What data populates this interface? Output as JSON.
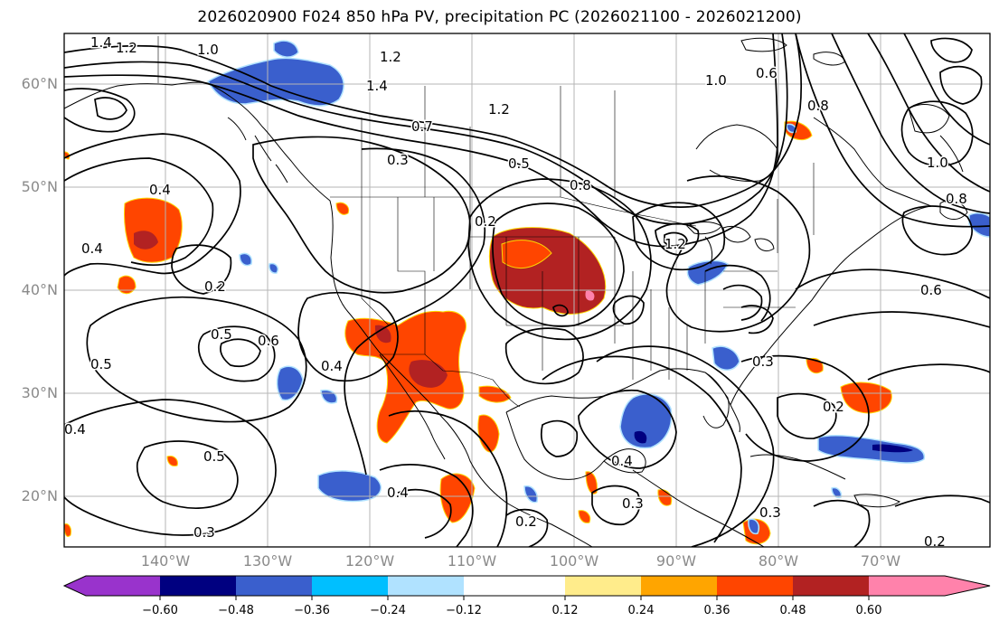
{
  "title": "2026020900 F024 850 hPa PV, precipitation PC (2026021100 - 2026021200)",
  "lat_labels": [
    "60°N",
    "50°N",
    "40°N",
    "30°N",
    "20°N"
  ],
  "lon_labels": [
    "140°W",
    "130°W",
    "120°W",
    "110°W",
    "100°W",
    "90°W",
    "80°W",
    "70°W"
  ],
  "contour_labels": [
    "1.4",
    "1.2",
    "1.0",
    "1.2",
    "1.4",
    "0.7",
    "1.2",
    "0.5",
    "0.8",
    "1.2",
    "1.0",
    "0.6",
    "0.8",
    "0.3",
    "0.4",
    "0.2",
    "0.4",
    "0.2",
    "0.5",
    "0.6",
    "0.4",
    "0.5",
    "0.4",
    "0.5",
    "0.4",
    "0.6",
    "0.3",
    "0.2",
    "0.4",
    "0.3",
    "0.3",
    "0.2",
    "0.3",
    "0.2",
    "1.0",
    "0.8"
  ],
  "colorbar": {
    "colors": [
      "#9933cc",
      "#000080",
      "#3a5fcd",
      "#00bfff",
      "#b0e2ff",
      "#ffffff",
      "#ffec8b",
      "#ffa500",
      "#ff4500",
      "#b22222",
      "#ff82ab"
    ],
    "tick_labels": [
      "−0.60",
      "−0.48",
      "−0.36",
      "−0.24",
      "−0.12",
      "0.12",
      "0.24",
      "0.36",
      "0.48",
      "0.60"
    ]
  },
  "chart_data": {
    "type": "map",
    "title": "2026020900 F024 850 hPa PV, precipitation PC (2026021100 - 2026021200)",
    "variables": [
      "850 hPa PV (contours)",
      "precipitation PC (shading)"
    ],
    "region": "North America",
    "lon_range": [
      -150,
      -59
    ],
    "lat_range": [
      15,
      65
    ],
    "colorbar_levels": [
      -0.6,
      -0.48,
      -0.36,
      -0.24,
      -0.12,
      0.12,
      0.24,
      0.36,
      0.48,
      0.6
    ]
  }
}
